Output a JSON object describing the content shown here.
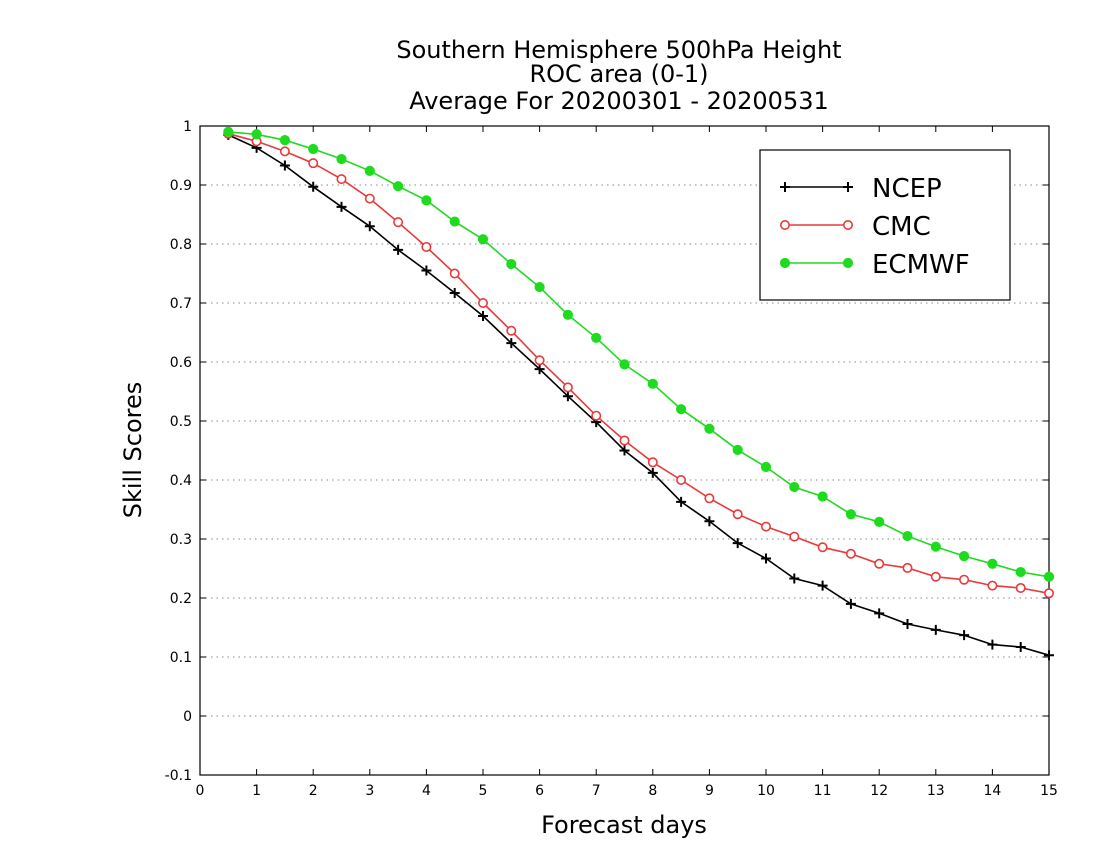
{
  "chart_data": {
    "type": "line",
    "title_lines": [
      "Southern Hemisphere 500hPa Height",
      "ROC area (0-1)",
      "Average For 20200301 - 20200531"
    ],
    "xlabel": "Forecast days",
    "ylabel": "Skill Scores",
    "xlim": [
      0,
      15
    ],
    "ylim": [
      -0.1,
      1
    ],
    "xticks": [
      "0",
      "1",
      "2",
      "3",
      "4",
      "5",
      "6",
      "7",
      "8",
      "9",
      "10",
      "11",
      "12",
      "13",
      "14",
      "15"
    ],
    "yticks": [
      "-0.1",
      "0",
      "0.1",
      "0.2",
      "0.3",
      "0.4",
      "0.5",
      "0.6",
      "0.7",
      "0.8",
      "0.9",
      "1"
    ],
    "grid": "horizontal dotted",
    "legend_position": "top-right",
    "x": [
      0.5,
      1,
      1.5,
      2,
      2.5,
      3,
      3.5,
      4,
      4.5,
      5,
      5.5,
      6,
      6.5,
      7,
      7.5,
      8,
      8.5,
      9,
      9.5,
      10,
      10.5,
      11,
      11.5,
      12,
      12.5,
      13,
      13.5,
      14,
      14.5,
      15
    ],
    "series": [
      {
        "name": "NCEP",
        "color": "#000000",
        "marker": "plus",
        "values": [
          0.985,
          0.963,
          0.933,
          0.897,
          0.863,
          0.83,
          0.79,
          0.755,
          0.717,
          0.678,
          0.632,
          0.588,
          0.542,
          0.498,
          0.45,
          0.412,
          0.363,
          0.33,
          0.293,
          0.267,
          0.233,
          0.221,
          0.19,
          0.174,
          0.156,
          0.146,
          0.137,
          0.121,
          0.117,
          0.103
        ]
      },
      {
        "name": "CMC",
        "color": "#e83a3a",
        "marker": "open-circle",
        "values": [
          0.987,
          0.974,
          0.957,
          0.937,
          0.91,
          0.877,
          0.837,
          0.795,
          0.75,
          0.7,
          0.653,
          0.603,
          0.557,
          0.509,
          0.467,
          0.43,
          0.4,
          0.369,
          0.342,
          0.321,
          0.304,
          0.286,
          0.275,
          0.258,
          0.251,
          0.236,
          0.231,
          0.221,
          0.217,
          0.208
        ]
      },
      {
        "name": "ECMWF",
        "color": "#1fdb1f",
        "marker": "filled-circle",
        "values": [
          0.99,
          0.986,
          0.976,
          0.961,
          0.944,
          0.924,
          0.898,
          0.874,
          0.838,
          0.808,
          0.766,
          0.727,
          0.68,
          0.641,
          0.596,
          0.563,
          0.52,
          0.487,
          0.451,
          0.422,
          0.388,
          0.372,
          0.342,
          0.329,
          0.305,
          0.287,
          0.271,
          0.258,
          0.244,
          0.236
        ]
      }
    ]
  }
}
